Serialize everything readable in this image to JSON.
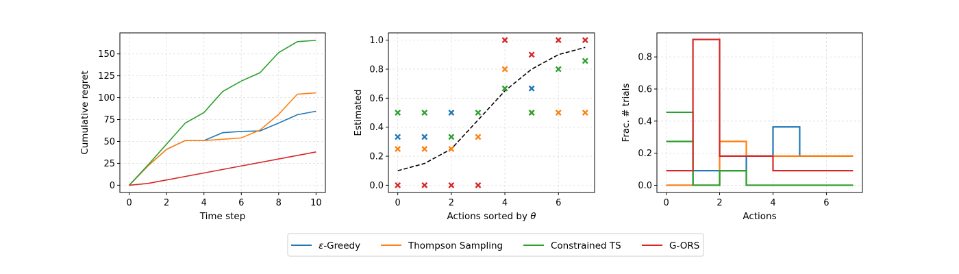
{
  "colors": {
    "epsilon_greedy": "#1f77b4",
    "thompson_sampling": "#ff7f0e",
    "constrained_ts": "#2ca02c",
    "g_ors": "#d62728",
    "reference": "#000000",
    "grid": "#dddddd"
  },
  "legend": {
    "placement": "bottom-center",
    "entries": [
      {
        "key": "epsilon_greedy",
        "label_prefix": "ε",
        "label_suffix": "-Greedy"
      },
      {
        "key": "thompson_sampling",
        "label": "Thompson Sampling"
      },
      {
        "key": "constrained_ts",
        "label": "Constrained TS"
      },
      {
        "key": "g_ors",
        "label": "G-ORS"
      }
    ]
  },
  "chart_data": [
    {
      "type": "line",
      "xlabel": "Time step",
      "ylabel": "Cumulative regret",
      "xlim": [
        -0.5,
        10.5
      ],
      "ylim": [
        -8.3,
        174
      ],
      "xticks": [
        0,
        2,
        4,
        6,
        8,
        10
      ],
      "yticks": [
        0,
        25,
        50,
        75,
        100,
        125,
        150
      ],
      "grid": true,
      "x": [
        0,
        1,
        2,
        3,
        4,
        5,
        6,
        7,
        8,
        9,
        10
      ],
      "series": [
        {
          "key": "epsilon_greedy",
          "values": [
            0,
            22,
            41,
            51,
            51,
            60,
            61.5,
            62,
            71,
            80.5,
            84.5
          ]
        },
        {
          "key": "thompson_sampling",
          "values": [
            0,
            22,
            41,
            51,
            51,
            52.5,
            54,
            63,
            81,
            104,
            105.5
          ]
        },
        {
          "key": "constrained_ts",
          "values": [
            0,
            23,
            47,
            71,
            83,
            107,
            119,
            128.5,
            151.5,
            164,
            165.5
          ]
        },
        {
          "key": "g_ors",
          "values": [
            0,
            2,
            6,
            10,
            14,
            18,
            22,
            26,
            30,
            34,
            38
          ]
        }
      ]
    },
    {
      "type": "scatter",
      "xlabel_prefix": "Actions sorted by ",
      "xlabel_symbol": "θ",
      "ylabel": "Estimated",
      "xlim": [
        -0.35,
        7.35
      ],
      "ylim": [
        -0.05,
        1.05
      ],
      "xticks": [
        0,
        2,
        4,
        6
      ],
      "yticks": [
        0.0,
        0.2,
        0.4,
        0.6,
        0.8,
        1.0
      ],
      "grid": true,
      "reference_line": {
        "key": "reference",
        "style": "dashed",
        "x": [
          0,
          1,
          2,
          3,
          4,
          5,
          6,
          7
        ],
        "y": [
          0.1,
          0.15,
          0.25,
          0.45,
          0.65,
          0.8,
          0.9,
          0.95
        ]
      },
      "series": [
        {
          "key": "epsilon_greedy",
          "points": [
            [
              0,
              0.333
            ],
            [
              1,
              0.333
            ],
            [
              2,
              0.5
            ],
            [
              5,
              0.667
            ]
          ]
        },
        {
          "key": "thompson_sampling",
          "points": [
            [
              0,
              0.25
            ],
            [
              1,
              0.25
            ],
            [
              2,
              0.25
            ],
            [
              3,
              0.333
            ],
            [
              4,
              0.8
            ],
            [
              5,
              0.5
            ],
            [
              6,
              0.5
            ],
            [
              7,
              0.5
            ]
          ]
        },
        {
          "key": "constrained_ts",
          "points": [
            [
              0,
              0.5
            ],
            [
              1,
              0.5
            ],
            [
              2,
              0.333
            ],
            [
              3,
              0.5
            ],
            [
              4,
              0.667
            ],
            [
              5,
              0.5
            ],
            [
              6,
              0.8
            ],
            [
              7,
              0.857
            ]
          ]
        },
        {
          "key": "g_ors",
          "points": [
            [
              0,
              0.0
            ],
            [
              1,
              0.0
            ],
            [
              2,
              0.0
            ],
            [
              3,
              0.0
            ],
            [
              4,
              1.0
            ],
            [
              5,
              0.9
            ],
            [
              6,
              1.0
            ],
            [
              7,
              1.0
            ]
          ]
        }
      ]
    },
    {
      "type": "line",
      "step": "post",
      "xlabel": "Actions",
      "ylabel": "Frac. # trials",
      "xlim": [
        -0.35,
        7.35
      ],
      "ylim": [
        -0.045,
        0.95
      ],
      "xticks": [
        0,
        2,
        4,
        6
      ],
      "yticks": [
        0.0,
        0.2,
        0.4,
        0.6,
        0.8
      ],
      "grid": true,
      "x": [
        0,
        1,
        2,
        3,
        4,
        5,
        6,
        7
      ],
      "series": [
        {
          "key": "epsilon_greedy",
          "values": [
            0.0,
            0.091,
            0.091,
            0.182,
            0.364,
            0.182,
            0.182,
            0.182
          ]
        },
        {
          "key": "thompson_sampling",
          "values": [
            0.0,
            0.0,
            0.273,
            0.182,
            0.182,
            0.182,
            0.182,
            0.182
          ]
        },
        {
          "key": "constrained_ts",
          "values": [
            0.455,
            0.0,
            0.091,
            0.0,
            0.0,
            0.0,
            0.0,
            0.0
          ]
        },
        {
          "key": "constrained_ts",
          "values": [
            0.273,
            0.0,
            0.091,
            0.0,
            0.0,
            0.0,
            0.0,
            0.0
          ]
        },
        {
          "key": "g_ors",
          "values": [
            0.091,
            0.909,
            0.182,
            0.182,
            0.091,
            0.091,
            0.091,
            0.091
          ]
        }
      ]
    }
  ]
}
